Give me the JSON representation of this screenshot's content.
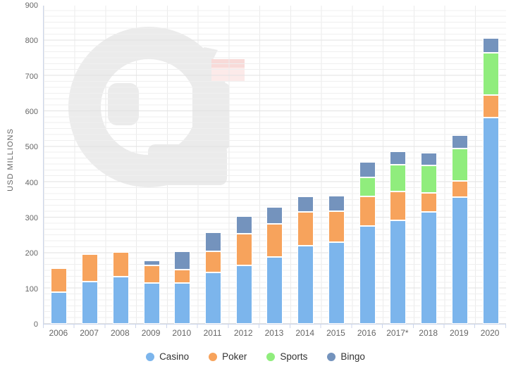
{
  "y_axis_title": "USD MILLIONS",
  "icons": {
    "watermark": "circular-g-flag-logo-watermark",
    "legend_marker": "series-color-dot"
  },
  "colors": {
    "casino": "#7cb5ec",
    "poker": "#f7a35c",
    "sports": "#90ed7d",
    "bingo": "#7493bd",
    "axis_text": "#666666",
    "legend_text": "#333333",
    "gridline_major": "#e2e2e2",
    "gridline_minor": "#efefef",
    "watermark_gray": "#eaeaea",
    "watermark_pink": "#fce9e8"
  },
  "chart_data": {
    "type": "bar",
    "stacked": true,
    "title": "",
    "xlabel": "",
    "ylabel": "USD MILLIONS",
    "ylim": [
      0,
      900
    ],
    "y_ticks": [
      0,
      100,
      200,
      300,
      400,
      500,
      600,
      700,
      800,
      900
    ],
    "grid": true,
    "legend_position": "bottom",
    "categories": [
      "2006",
      "2007",
      "2008",
      "2009",
      "2010",
      "2011",
      "2012",
      "2013",
      "2014",
      "2015",
      "2016",
      "2017*",
      "2018",
      "2019",
      "2020"
    ],
    "series": [
      {
        "name": "Casino",
        "color": "#7cb5ec",
        "values": [
          89,
          119,
          133,
          115,
          115,
          146,
          164,
          189,
          220,
          230,
          277,
          292,
          315,
          358,
          583
        ]
      },
      {
        "name": "Poker",
        "color": "#f7a35c",
        "values": [
          67,
          78,
          70,
          50,
          38,
          60,
          90,
          93,
          95,
          88,
          83,
          81,
          53,
          45,
          64
        ]
      },
      {
        "name": "Sports",
        "color": "#90ed7d",
        "values": [
          0,
          0,
          0,
          0,
          0,
          0,
          0,
          0,
          0,
          0,
          54,
          76,
          78,
          91,
          119
        ]
      },
      {
        "name": "Bingo",
        "color": "#7493bd",
        "values": [
          0,
          0,
          0,
          13,
          51,
          53,
          50,
          47,
          43,
          43,
          44,
          37,
          35,
          38,
          42
        ]
      }
    ],
    "totals": [
      156,
      197,
      203,
      178,
      204,
      259,
      304,
      329,
      358,
      361,
      458,
      486,
      481,
      532,
      808
    ]
  }
}
